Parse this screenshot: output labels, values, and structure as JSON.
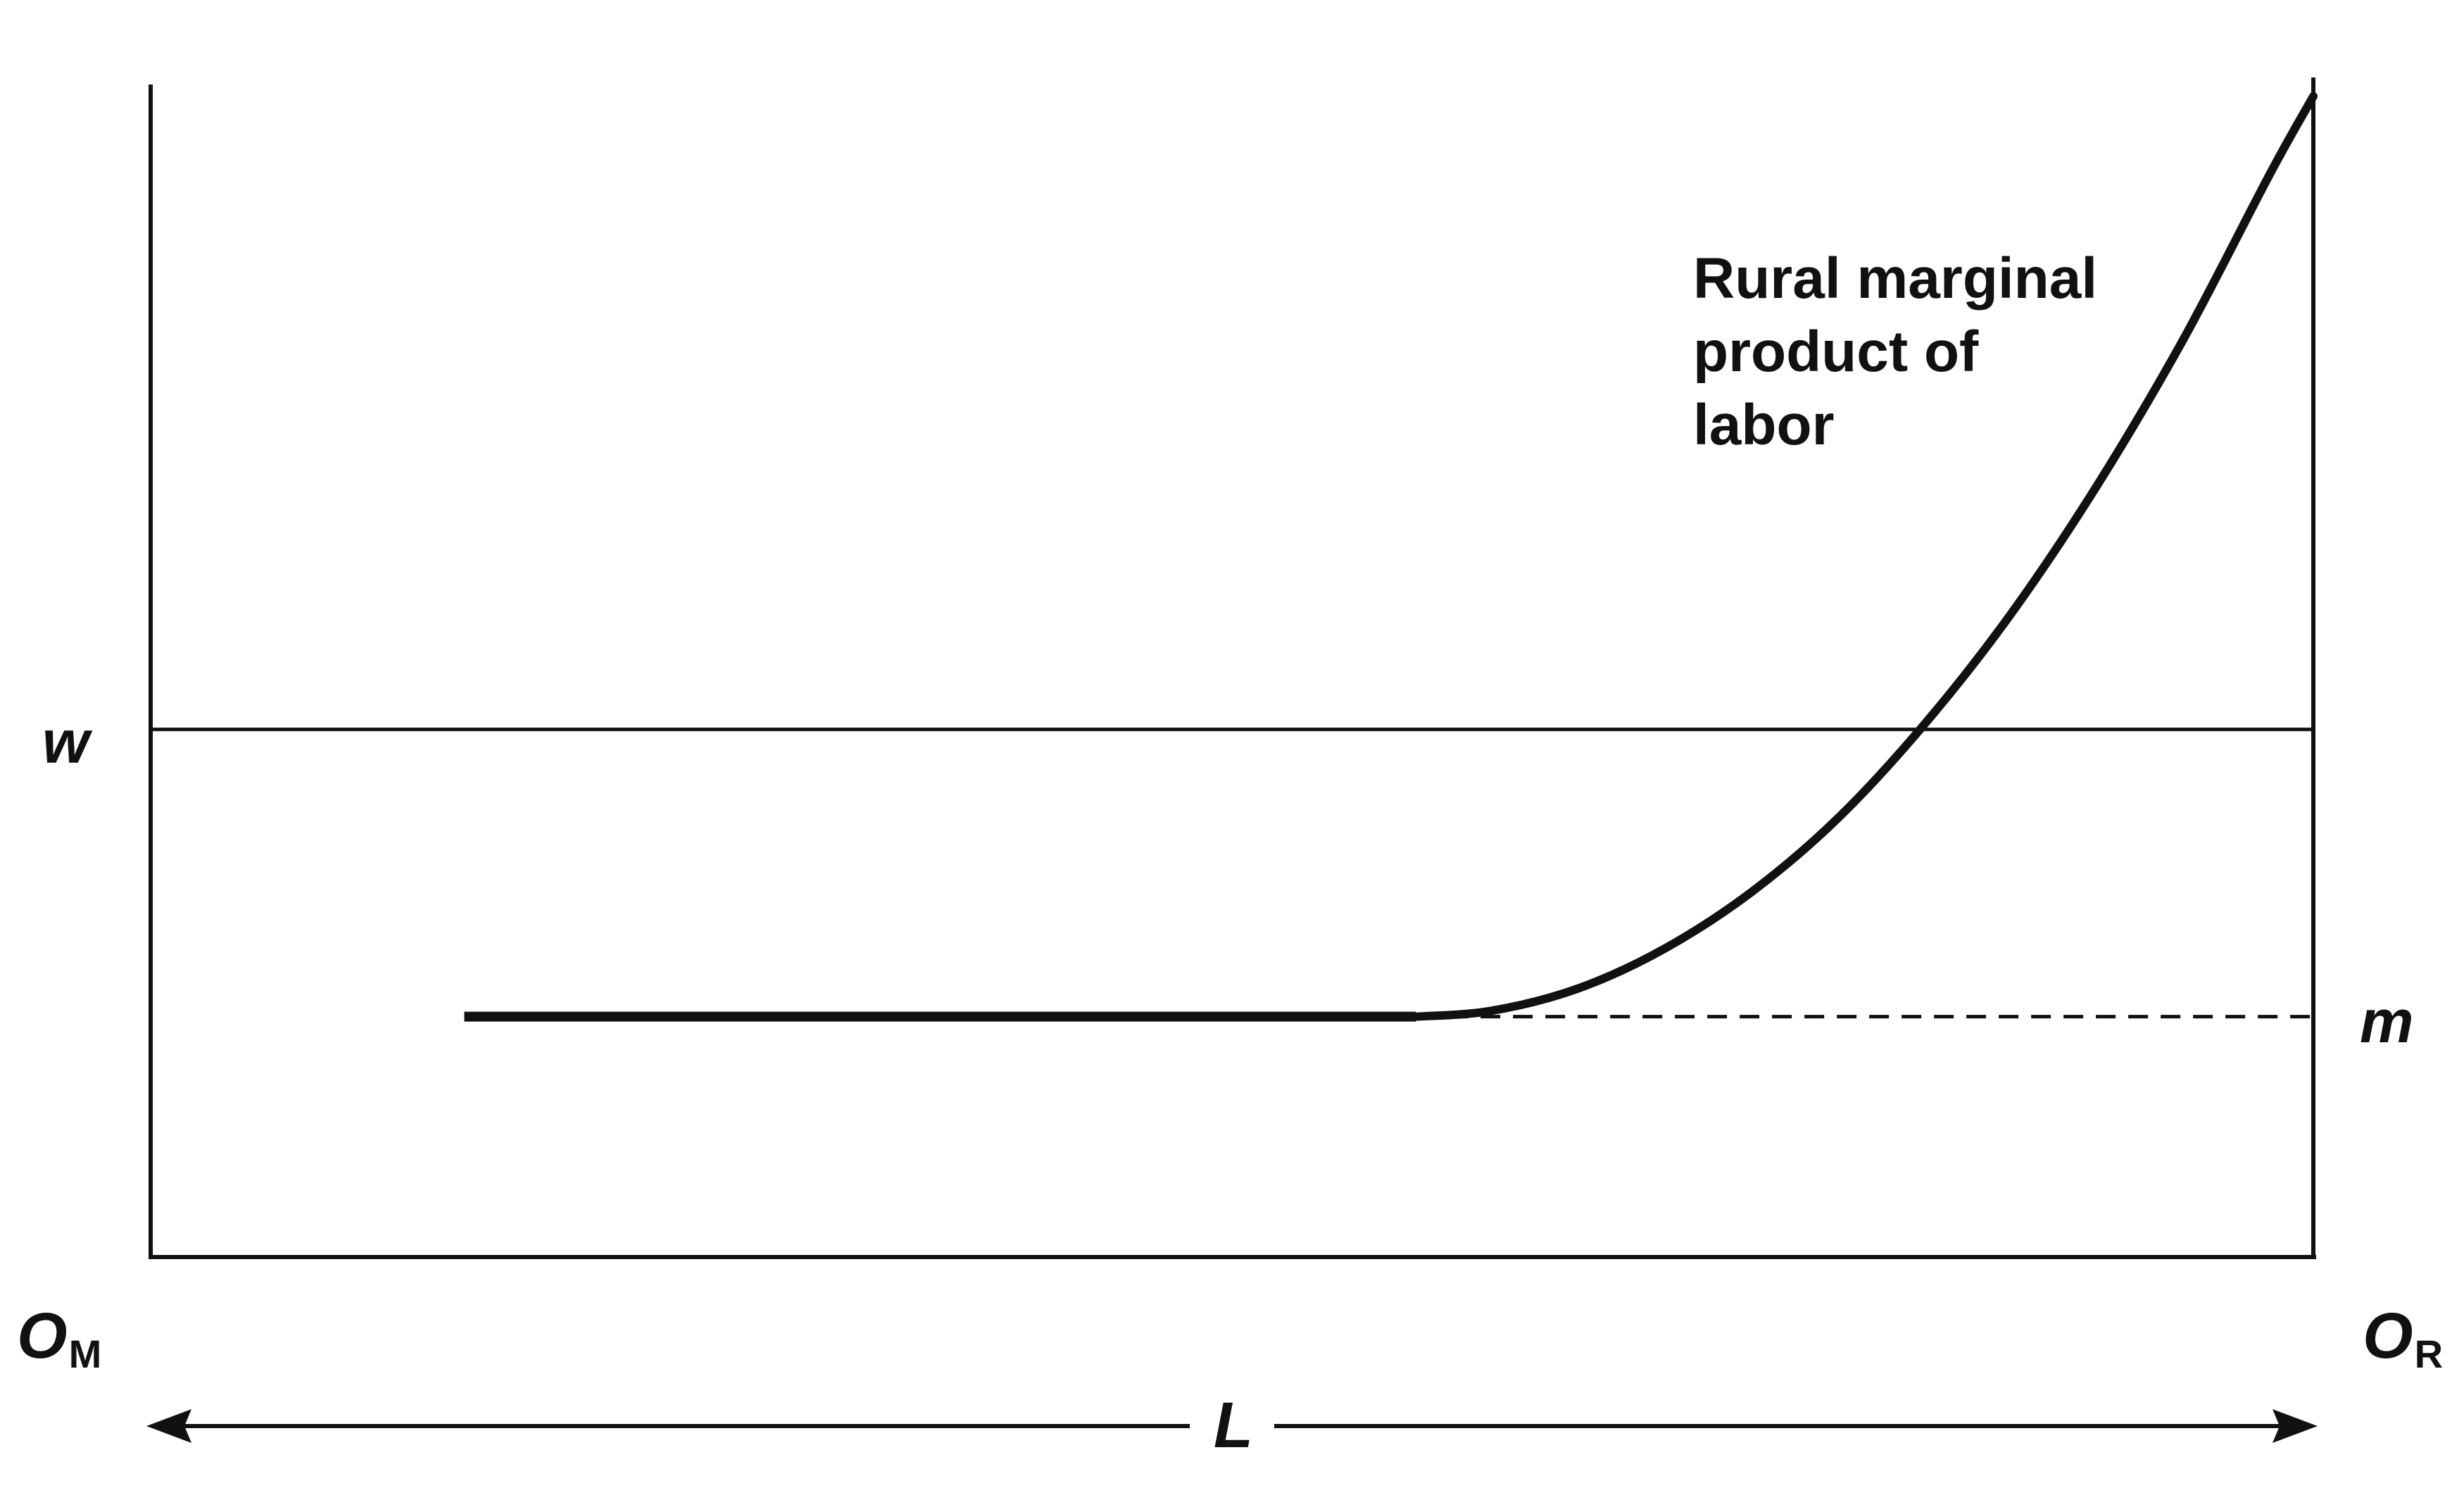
{
  "chart_data": {
    "type": "line",
    "title": "",
    "xlabel": "L",
    "ylabel": "",
    "origin_left_label": "O",
    "origin_left_subscript": "M",
    "origin_right_label": "O",
    "origin_right_subscript": "R",
    "xlim": [
      0,
      100
    ],
    "ylim": [
      0,
      100
    ],
    "grid": false,
    "legend": "none",
    "series": [
      {
        "name": "Rural marginal product of labor",
        "label_lines": [
          "Rural marginal",
          "product of",
          "labor"
        ],
        "style": "solid",
        "x": [
          14.5,
          30,
          45,
          58.5,
          62,
          66,
          70,
          74,
          78,
          82,
          86,
          90,
          94,
          98,
          100
        ],
        "y": [
          20.5,
          20.5,
          20.5,
          20.5,
          21.0,
          22.9,
          26.3,
          31.1,
          37.4,
          45.4,
          54.8,
          65.8,
          78.3,
          92.4,
          99.0
        ]
      },
      {
        "name": "",
        "style": "dashed",
        "x": [
          58.5,
          100
        ],
        "y": [
          20.5,
          20.5
        ]
      }
    ],
    "hlines": [
      {
        "label": "w",
        "y": 45.0,
        "style": "solid"
      },
      {
        "label": "m",
        "y": 20.5,
        "style": "dashed"
      }
    ],
    "crossing": {
      "x": 82.0,
      "y": 45.0
    }
  }
}
